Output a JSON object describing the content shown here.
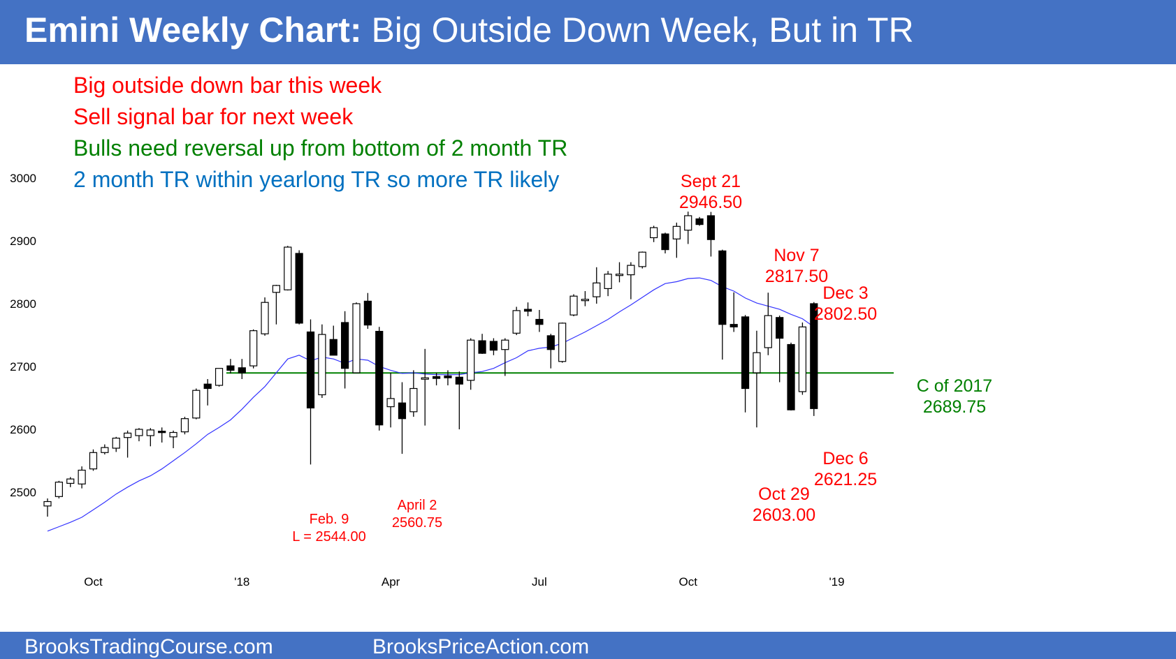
{
  "header": {
    "title_bold": "Emini Weekly Chart:",
    "title_rest": " Big Outside Down Week, But in TR"
  },
  "notes": [
    {
      "text": "Big outside down bar this week",
      "color": "#ff0000"
    },
    {
      "text": "Sell signal bar for next week",
      "color": "#ff0000"
    },
    {
      "text": "Bulls need reversal up from bottom of 2 month TR",
      "color": "#008000"
    },
    {
      "text": "2 month TR within yearlong TR so more TR likely",
      "color": "#0070c0"
    }
  ],
  "footer": {
    "left": "BrooksTradingCourse.com",
    "right": "BrooksPriceAction.com"
  },
  "colors": {
    "header_bg": "#4472c4",
    "bear_candle": "#000000",
    "bull_candle": "#ffffff",
    "ma_line": "#3333ff",
    "level_line": "#008000",
    "annotation_red": "#ff0000",
    "annotation_green": "#008000"
  },
  "chart_data": {
    "type": "candlestick",
    "title": "",
    "ylim": [
      2400,
      3050
    ],
    "yticks": [
      2500,
      2600,
      2700,
      2800,
      2900,
      3000
    ],
    "ytick_labels": [
      "2500",
      "2600",
      "2700",
      "2800",
      "2900",
      "3000"
    ],
    "xtick_labels": [
      {
        "label": "Oct",
        "week": 4
      },
      {
        "label": "'18",
        "week": 17
      },
      {
        "label": "Apr",
        "week": 30
      },
      {
        "label": "Jul",
        "week": 43
      },
      {
        "label": "Oct",
        "week": 56
      },
      {
        "label": "'19",
        "week": 69
      }
    ],
    "candles": [
      {
        "o": 2478,
        "h": 2490,
        "l": 2461,
        "c": 2485
      },
      {
        "o": 2493,
        "h": 2518,
        "l": 2490,
        "c": 2516
      },
      {
        "o": 2514,
        "h": 2524,
        "l": 2508,
        "c": 2521
      },
      {
        "o": 2513,
        "h": 2541,
        "l": 2506,
        "c": 2535
      },
      {
        "o": 2537,
        "h": 2568,
        "l": 2534,
        "c": 2563
      },
      {
        "o": 2563,
        "h": 2576,
        "l": 2560,
        "c": 2571
      },
      {
        "o": 2570,
        "h": 2588,
        "l": 2564,
        "c": 2586
      },
      {
        "o": 2587,
        "h": 2598,
        "l": 2555,
        "c": 2594
      },
      {
        "o": 2590,
        "h": 2602,
        "l": 2581,
        "c": 2600
      },
      {
        "o": 2590,
        "h": 2602,
        "l": 2573,
        "c": 2599
      },
      {
        "o": 2597,
        "h": 2603,
        "l": 2579,
        "c": 2595
      },
      {
        "o": 2588,
        "h": 2598,
        "l": 2570,
        "c": 2595
      },
      {
        "o": 2596,
        "h": 2620,
        "l": 2592,
        "c": 2617
      },
      {
        "o": 2618,
        "h": 2665,
        "l": 2616,
        "c": 2662
      },
      {
        "o": 2672,
        "h": 2680,
        "l": 2638,
        "c": 2665
      },
      {
        "o": 2670,
        "h": 2697,
        "l": 2668,
        "c": 2697
      },
      {
        "o": 2701,
        "h": 2712,
        "l": 2689,
        "c": 2694
      },
      {
        "o": 2698,
        "h": 2712,
        "l": 2680,
        "c": 2690
      },
      {
        "o": 2701,
        "h": 2759,
        "l": 2697,
        "c": 2757
      },
      {
        "o": 2752,
        "h": 2810,
        "l": 2749,
        "c": 2802
      },
      {
        "o": 2818,
        "h": 2830,
        "l": 2767,
        "c": 2829
      },
      {
        "o": 2822,
        "h": 2892,
        "l": 2821,
        "c": 2890
      },
      {
        "o": 2880,
        "h": 2885,
        "l": 2767,
        "c": 2769
      },
      {
        "o": 2755,
        "h": 2775,
        "l": 2544,
        "c": 2634
      },
      {
        "o": 2655,
        "h": 2767,
        "l": 2650,
        "c": 2751
      },
      {
        "o": 2743,
        "h": 2765,
        "l": 2720,
        "c": 2718
      },
      {
        "o": 2770,
        "h": 2788,
        "l": 2665,
        "c": 2697
      },
      {
        "o": 2690,
        "h": 2802,
        "l": 2690,
        "c": 2800
      },
      {
        "o": 2804,
        "h": 2817,
        "l": 2760,
        "c": 2766
      },
      {
        "o": 2756,
        "h": 2763,
        "l": 2598,
        "c": 2607
      },
      {
        "o": 2636,
        "h": 2690,
        "l": 2603,
        "c": 2649
      },
      {
        "o": 2642,
        "h": 2675,
        "l": 2561,
        "c": 2617
      },
      {
        "o": 2628,
        "h": 2694,
        "l": 2620,
        "c": 2665
      },
      {
        "o": 2682,
        "h": 2728,
        "l": 2606,
        "c": 2682
      },
      {
        "o": 2684,
        "h": 2690,
        "l": 2670,
        "c": 2681
      },
      {
        "o": 2685,
        "h": 2694,
        "l": 2670,
        "c": 2682
      },
      {
        "o": 2683,
        "h": 2692,
        "l": 2600,
        "c": 2672
      },
      {
        "o": 2678,
        "h": 2745,
        "l": 2663,
        "c": 2742
      },
      {
        "o": 2741,
        "h": 2752,
        "l": 2720,
        "c": 2721
      },
      {
        "o": 2740,
        "h": 2745,
        "l": 2718,
        "c": 2726
      },
      {
        "o": 2727,
        "h": 2745,
        "l": 2685,
        "c": 2742
      },
      {
        "o": 2753,
        "h": 2795,
        "l": 2750,
        "c": 2789
      },
      {
        "o": 2791,
        "h": 2802,
        "l": 2780,
        "c": 2788
      },
      {
        "o": 2775,
        "h": 2790,
        "l": 2755,
        "c": 2767
      },
      {
        "o": 2749,
        "h": 2752,
        "l": 2697,
        "c": 2727
      },
      {
        "o": 2708,
        "h": 2770,
        "l": 2706,
        "c": 2769
      },
      {
        "o": 2782,
        "h": 2815,
        "l": 2780,
        "c": 2812
      },
      {
        "o": 2807,
        "h": 2820,
        "l": 2796,
        "c": 2807
      },
      {
        "o": 2811,
        "h": 2858,
        "l": 2800,
        "c": 2833
      },
      {
        "o": 2824,
        "h": 2852,
        "l": 2812,
        "c": 2847
      },
      {
        "o": 2847,
        "h": 2866,
        "l": 2834,
        "c": 2847
      },
      {
        "o": 2846,
        "h": 2866,
        "l": 2807,
        "c": 2861
      },
      {
        "o": 2859,
        "h": 2883,
        "l": 2856,
        "c": 2882
      },
      {
        "o": 2905,
        "h": 2924,
        "l": 2898,
        "c": 2921
      },
      {
        "o": 2911,
        "h": 2913,
        "l": 2880,
        "c": 2886
      },
      {
        "o": 2903,
        "h": 2929,
        "l": 2873,
        "c": 2923
      },
      {
        "o": 2917,
        "h": 2946.5,
        "l": 2895,
        "c": 2940
      },
      {
        "o": 2935,
        "h": 2938,
        "l": 2924,
        "c": 2926
      },
      {
        "o": 2940,
        "h": 2946,
        "l": 2875,
        "c": 2902
      },
      {
        "o": 2884,
        "h": 2886,
        "l": 2711,
        "c": 2767
      },
      {
        "o": 2767,
        "h": 2818,
        "l": 2755,
        "c": 2763
      },
      {
        "o": 2779,
        "h": 2782,
        "l": 2627,
        "c": 2665
      },
      {
        "o": 2690,
        "h": 2757,
        "l": 2603,
        "c": 2722
      },
      {
        "o": 2730,
        "h": 2817.5,
        "l": 2718,
        "c": 2781
      },
      {
        "o": 2778,
        "h": 2781,
        "l": 2675,
        "c": 2745
      },
      {
        "o": 2735,
        "h": 2738,
        "l": 2630,
        "c": 2631
      },
      {
        "o": 2660,
        "h": 2770,
        "l": 2655,
        "c": 2763
      },
      {
        "o": 2800,
        "h": 2802.5,
        "l": 2621.25,
        "c": 2633
      }
    ],
    "moving_average": [
      2438,
      2445,
      2452,
      2460,
      2472,
      2484,
      2497,
      2508,
      2518,
      2526,
      2537,
      2550,
      2563,
      2577,
      2592,
      2603,
      2615,
      2632,
      2651,
      2668,
      2690,
      2712,
      2718,
      2709,
      2715,
      2712,
      2705,
      2712,
      2710,
      2700,
      2694,
      2689,
      2690,
      2688,
      2687,
      2687,
      2687,
      2690,
      2692,
      2697,
      2706,
      2714,
      2725,
      2729,
      2731,
      2737,
      2746,
      2755,
      2765,
      2775,
      2787,
      2798,
      2810,
      2822,
      2832,
      2835,
      2840,
      2841,
      2837,
      2827,
      2820,
      2809,
      2801,
      2796,
      2791,
      2783,
      2776,
      2763
    ],
    "levels": [
      {
        "name": "C of 2017",
        "value": 2689.75
      }
    ],
    "annotations": [
      {
        "lines": [
          "Sept 21",
          "2946.50"
        ],
        "color": "red",
        "week": 57
      },
      {
        "lines": [
          "Nov 7",
          "2817.50"
        ],
        "color": "red",
        "week": 63
      },
      {
        "lines": [
          "Dec 3",
          "2802.50"
        ],
        "color": "red",
        "week": 67
      },
      {
        "lines": [
          "Feb. 9",
          "L = 2544.00"
        ],
        "color": "red",
        "week": 23
      },
      {
        "lines": [
          "April 2",
          "2560.75"
        ],
        "color": "red",
        "week": 31
      },
      {
        "lines": [
          "Dec 6",
          "2621.25"
        ],
        "color": "red",
        "week": 67
      },
      {
        "lines": [
          "Oct 29",
          "2603.00"
        ],
        "color": "red",
        "week": 62
      },
      {
        "lines": [
          "C of 2017",
          "2689.75"
        ],
        "color": "green",
        "week": 72
      }
    ]
  }
}
